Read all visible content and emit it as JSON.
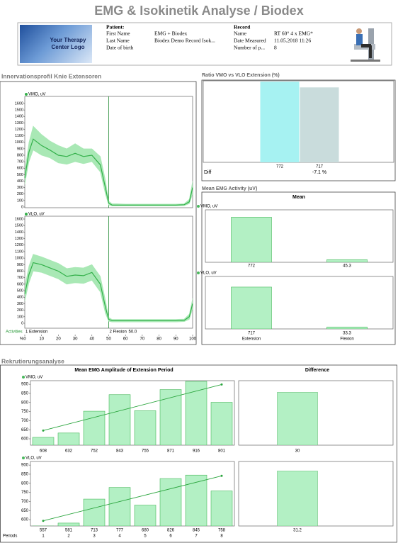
{
  "title": "EMG & Isokinetik Analyse / Biodex",
  "logo": "Your Therapy Center Logo",
  "header": {
    "patient": {
      "heading": "Patient:",
      "fields": [
        {
          "label": "First Name",
          "value": "EMG + Biodex"
        },
        {
          "label": "Last Name",
          "value": "Biodex Demo Record Isok..."
        },
        {
          "label": "Date of birth"
        }
      ]
    },
    "record": {
      "heading": "Record",
      "fields": [
        {
          "label": "Name",
          "value": "RT 60° 4 x EMG*"
        },
        {
          "label": "Date Measured",
          "value": "11.05.2018 11:26"
        },
        {
          "label": "Number of p...",
          "value": 8
        }
      ]
    }
  },
  "sections": [
    "Innervationsprofil Knie Extensoren",
    "Rekrutierungsanalyse"
  ],
  "chart_data": [
    {
      "type": "line",
      "x": [
        0,
        2.5,
        5,
        10,
        15,
        20,
        25,
        30,
        35,
        40,
        45,
        48,
        50,
        52,
        55,
        60,
        70,
        80,
        90,
        95,
        98,
        100
      ],
      "xlim": [
        0,
        100
      ],
      "ylim": [
        0,
        1600
      ],
      "yticks": [
        0,
        100,
        200,
        300,
        400,
        500,
        600,
        700,
        800,
        900,
        1000,
        1100,
        1200,
        1300,
        1400,
        1500,
        1600
      ],
      "boundary": 50,
      "series": [
        {
          "name": "VMO, uV",
          "color": "#33b04a",
          "band_color": "#a9e8b5",
          "values": [
            450,
            850,
            1050,
            950,
            880,
            800,
            780,
            830,
            780,
            800,
            650,
            300,
            60,
            30,
            30,
            30,
            30,
            30,
            30,
            35,
            80,
            300
          ],
          "upper": [
            550,
            1000,
            1250,
            1120,
            1020,
            950,
            900,
            980,
            900,
            900,
            780,
            420,
            90,
            50,
            50,
            45,
            45,
            45,
            45,
            50,
            120,
            400
          ],
          "lower": [
            350,
            700,
            880,
            800,
            760,
            680,
            660,
            700,
            670,
            700,
            540,
            200,
            30,
            15,
            15,
            15,
            15,
            15,
            15,
            20,
            50,
            200
          ]
        }
      ]
    },
    {
      "type": "line",
      "x": [
        0,
        2.5,
        5,
        10,
        15,
        20,
        25,
        30,
        35,
        40,
        45,
        48,
        50,
        52,
        55,
        60,
        70,
        80,
        90,
        95,
        98,
        100
      ],
      "xlim": [
        0,
        100
      ],
      "ylim": [
        0,
        1600
      ],
      "yticks": [
        0,
        100,
        200,
        300,
        400,
        500,
        600,
        700,
        800,
        900,
        1000,
        1100,
        1200,
        1300,
        1400,
        1500,
        1600
      ],
      "xticks": [
        0,
        10,
        20,
        30,
        40,
        50,
        60,
        70,
        80,
        90,
        100
      ],
      "xlabel": "%",
      "activities": "Activities",
      "phases": [
        {
          "label": "1 Extension"
        },
        {
          "label": "2 Flexion",
          "start": 50,
          "start_label": "50.0"
        }
      ],
      "series": [
        {
          "name": "VLO, uV",
          "color": "#33b04a",
          "band_color": "#a9e8b5",
          "values": [
            450,
            750,
            930,
            900,
            850,
            800,
            720,
            740,
            730,
            780,
            600,
            250,
            60,
            40,
            40,
            40,
            40,
            40,
            40,
            45,
            100,
            300
          ],
          "upper": [
            560,
            880,
            1060,
            1020,
            970,
            920,
            840,
            860,
            850,
            900,
            720,
            360,
            90,
            60,
            60,
            60,
            60,
            60,
            60,
            65,
            140,
            380
          ],
          "lower": [
            340,
            620,
            800,
            780,
            730,
            680,
            600,
            620,
            610,
            660,
            480,
            150,
            30,
            20,
            20,
            20,
            20,
            20,
            20,
            25,
            60,
            220
          ]
        }
      ]
    },
    {
      "type": "bar",
      "title": "Ratio VMO vs VLO Extension (%)",
      "values": [
        772,
        717
      ],
      "colors": [
        "#a6f2f2",
        "#c9dcdc"
      ],
      "ylim": [
        0,
        780
      ],
      "diff_label": "Diff",
      "diff": "-7.1 %"
    },
    {
      "type": "bar",
      "title": "Mean EMG Activity (uV)",
      "subtitle": "Mean",
      "ylim": [
        0,
        850
      ],
      "series": [
        {
          "name": "VMO, uV",
          "color": "#b3f0c4",
          "edge_color": "#49b85c",
          "values": [
            772,
            45.3
          ]
        }
      ]
    },
    {
      "type": "bar",
      "ylim": [
        0,
        850
      ],
      "categories": [
        "Extension",
        "Flexion"
      ],
      "series": [
        {
          "name": "VLO, uV",
          "color": "#b3f0c4",
          "edge_color": "#49b85c",
          "values": [
            717,
            33.3
          ]
        }
      ]
    },
    {
      "type": "bar",
      "title": "Mean EMG Amplitude of Extension Period",
      "ylim": [
        565,
        920
      ],
      "yticks": [
        600,
        650,
        700,
        750,
        800,
        850,
        900
      ],
      "trendline": "linear",
      "series": [
        {
          "name": "VMO, uV",
          "color": "#b3f0c4",
          "edge_color": "#49b85c",
          "values": [
            608,
            632,
            752,
            843,
            755,
            871,
            916,
            801
          ]
        }
      ]
    },
    {
      "type": "bar",
      "ylim": [
        565,
        920
      ],
      "yticks": [
        600,
        650,
        700,
        750,
        800,
        850,
        900
      ],
      "trendline": "linear",
      "xlabel": "Periods",
      "categories": [
        "1",
        "2",
        "3",
        "4",
        "5",
        "6",
        "7",
        "8"
      ],
      "series": [
        {
          "name": "VLO, uV",
          "color": "#b3f0c4",
          "edge_color": "#49b85c",
          "values": [
            557,
            581,
            713,
            777,
            680,
            826,
            845,
            758
          ]
        }
      ]
    },
    {
      "type": "bar",
      "title": "Difference",
      "values": [
        30
      ],
      "color": "#b3f0c4",
      "ylim": [
        0,
        35
      ]
    },
    {
      "type": "bar",
      "values": [
        31.2
      ],
      "color": "#b3f0c4",
      "ylim": [
        0,
        35
      ]
    }
  ]
}
